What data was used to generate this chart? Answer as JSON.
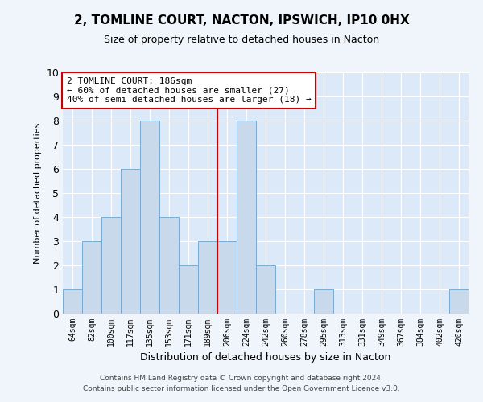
{
  "title": "2, TOMLINE COURT, NACTON, IPSWICH, IP10 0HX",
  "subtitle": "Size of property relative to detached houses in Nacton",
  "xlabel": "Distribution of detached houses by size in Nacton",
  "ylabel": "Number of detached properties",
  "categories": [
    "64sqm",
    "82sqm",
    "100sqm",
    "117sqm",
    "135sqm",
    "153sqm",
    "171sqm",
    "189sqm",
    "206sqm",
    "224sqm",
    "242sqm",
    "260sqm",
    "278sqm",
    "295sqm",
    "313sqm",
    "331sqm",
    "349sqm",
    "367sqm",
    "384sqm",
    "402sqm",
    "420sqm"
  ],
  "values": [
    1,
    3,
    4,
    6,
    8,
    4,
    2,
    3,
    3,
    8,
    2,
    0,
    0,
    1,
    0,
    0,
    0,
    0,
    0,
    0,
    1
  ],
  "bar_color": "#c9d9ec",
  "bar_edge_color": "#7aaad0",
  "vline_x": 7.5,
  "vline_color": "#cc0000",
  "ylim": [
    0,
    10
  ],
  "yticks": [
    0,
    1,
    2,
    3,
    4,
    5,
    6,
    7,
    8,
    9,
    10
  ],
  "annotation_text": "2 TOMLINE COURT: 186sqm\n← 60% of detached houses are smaller (27)\n40% of semi-detached houses are larger (18) →",
  "annotation_box_color": "#ffffff",
  "annotation_box_edge_color": "#cc0000",
  "bg_color": "#dce9f8",
  "fig_bg_color": "#f0f5fc",
  "grid_color": "#ffffff",
  "footer": "Contains HM Land Registry data © Crown copyright and database right 2024.\nContains public sector information licensed under the Open Government Licence v3.0.",
  "title_fontsize": 11,
  "subtitle_fontsize": 9,
  "ylabel_fontsize": 8,
  "xlabel_fontsize": 9,
  "tick_fontsize": 7,
  "footer_fontsize": 6.5,
  "annot_fontsize": 8
}
